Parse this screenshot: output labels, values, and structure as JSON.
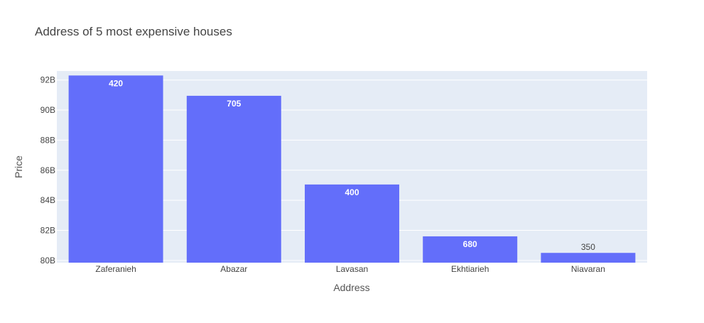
{
  "chart_data": {
    "type": "bar",
    "title": "Address of 5 most expensive houses",
    "xlabel": "Address",
    "ylabel": "Price",
    "categories": [
      "Zaferanieh",
      "Abazar",
      "Lavasan",
      "Ekhtiarieh",
      "Niavaran"
    ],
    "values": [
      92300000000,
      90950000000,
      85050000000,
      81600000000,
      80500000000
    ],
    "bar_labels": [
      "420",
      "705",
      "400",
      "680",
      "350"
    ],
    "ylim": [
      79850000000,
      92600000000
    ],
    "yticks": [
      80000000000,
      82000000000,
      84000000000,
      86000000000,
      88000000000,
      90000000000,
      92000000000
    ],
    "ytick_labels": [
      "80B",
      "82B",
      "84B",
      "86B",
      "88B",
      "90B",
      "92B"
    ],
    "grid": true,
    "colors": {
      "bar": "#636efa",
      "plot_background": "#e5ecf6",
      "gridline": "#ffffff",
      "label_inside": "#ffffff",
      "label_outside": "#444444"
    }
  }
}
